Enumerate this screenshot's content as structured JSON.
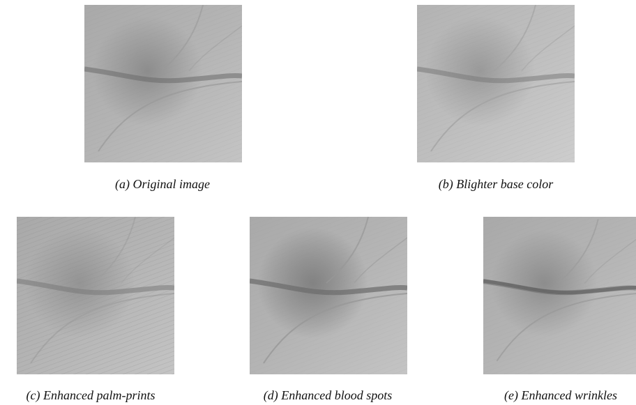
{
  "panels": [
    {
      "caption": "(a) Original image"
    },
    {
      "caption": "(b) Blighter base color"
    },
    {
      "caption": "(c) Enhanced palm-prints"
    },
    {
      "caption": "(d) Enhanced blood spots"
    },
    {
      "caption": "(e) Enhanced wrinkles"
    }
  ]
}
